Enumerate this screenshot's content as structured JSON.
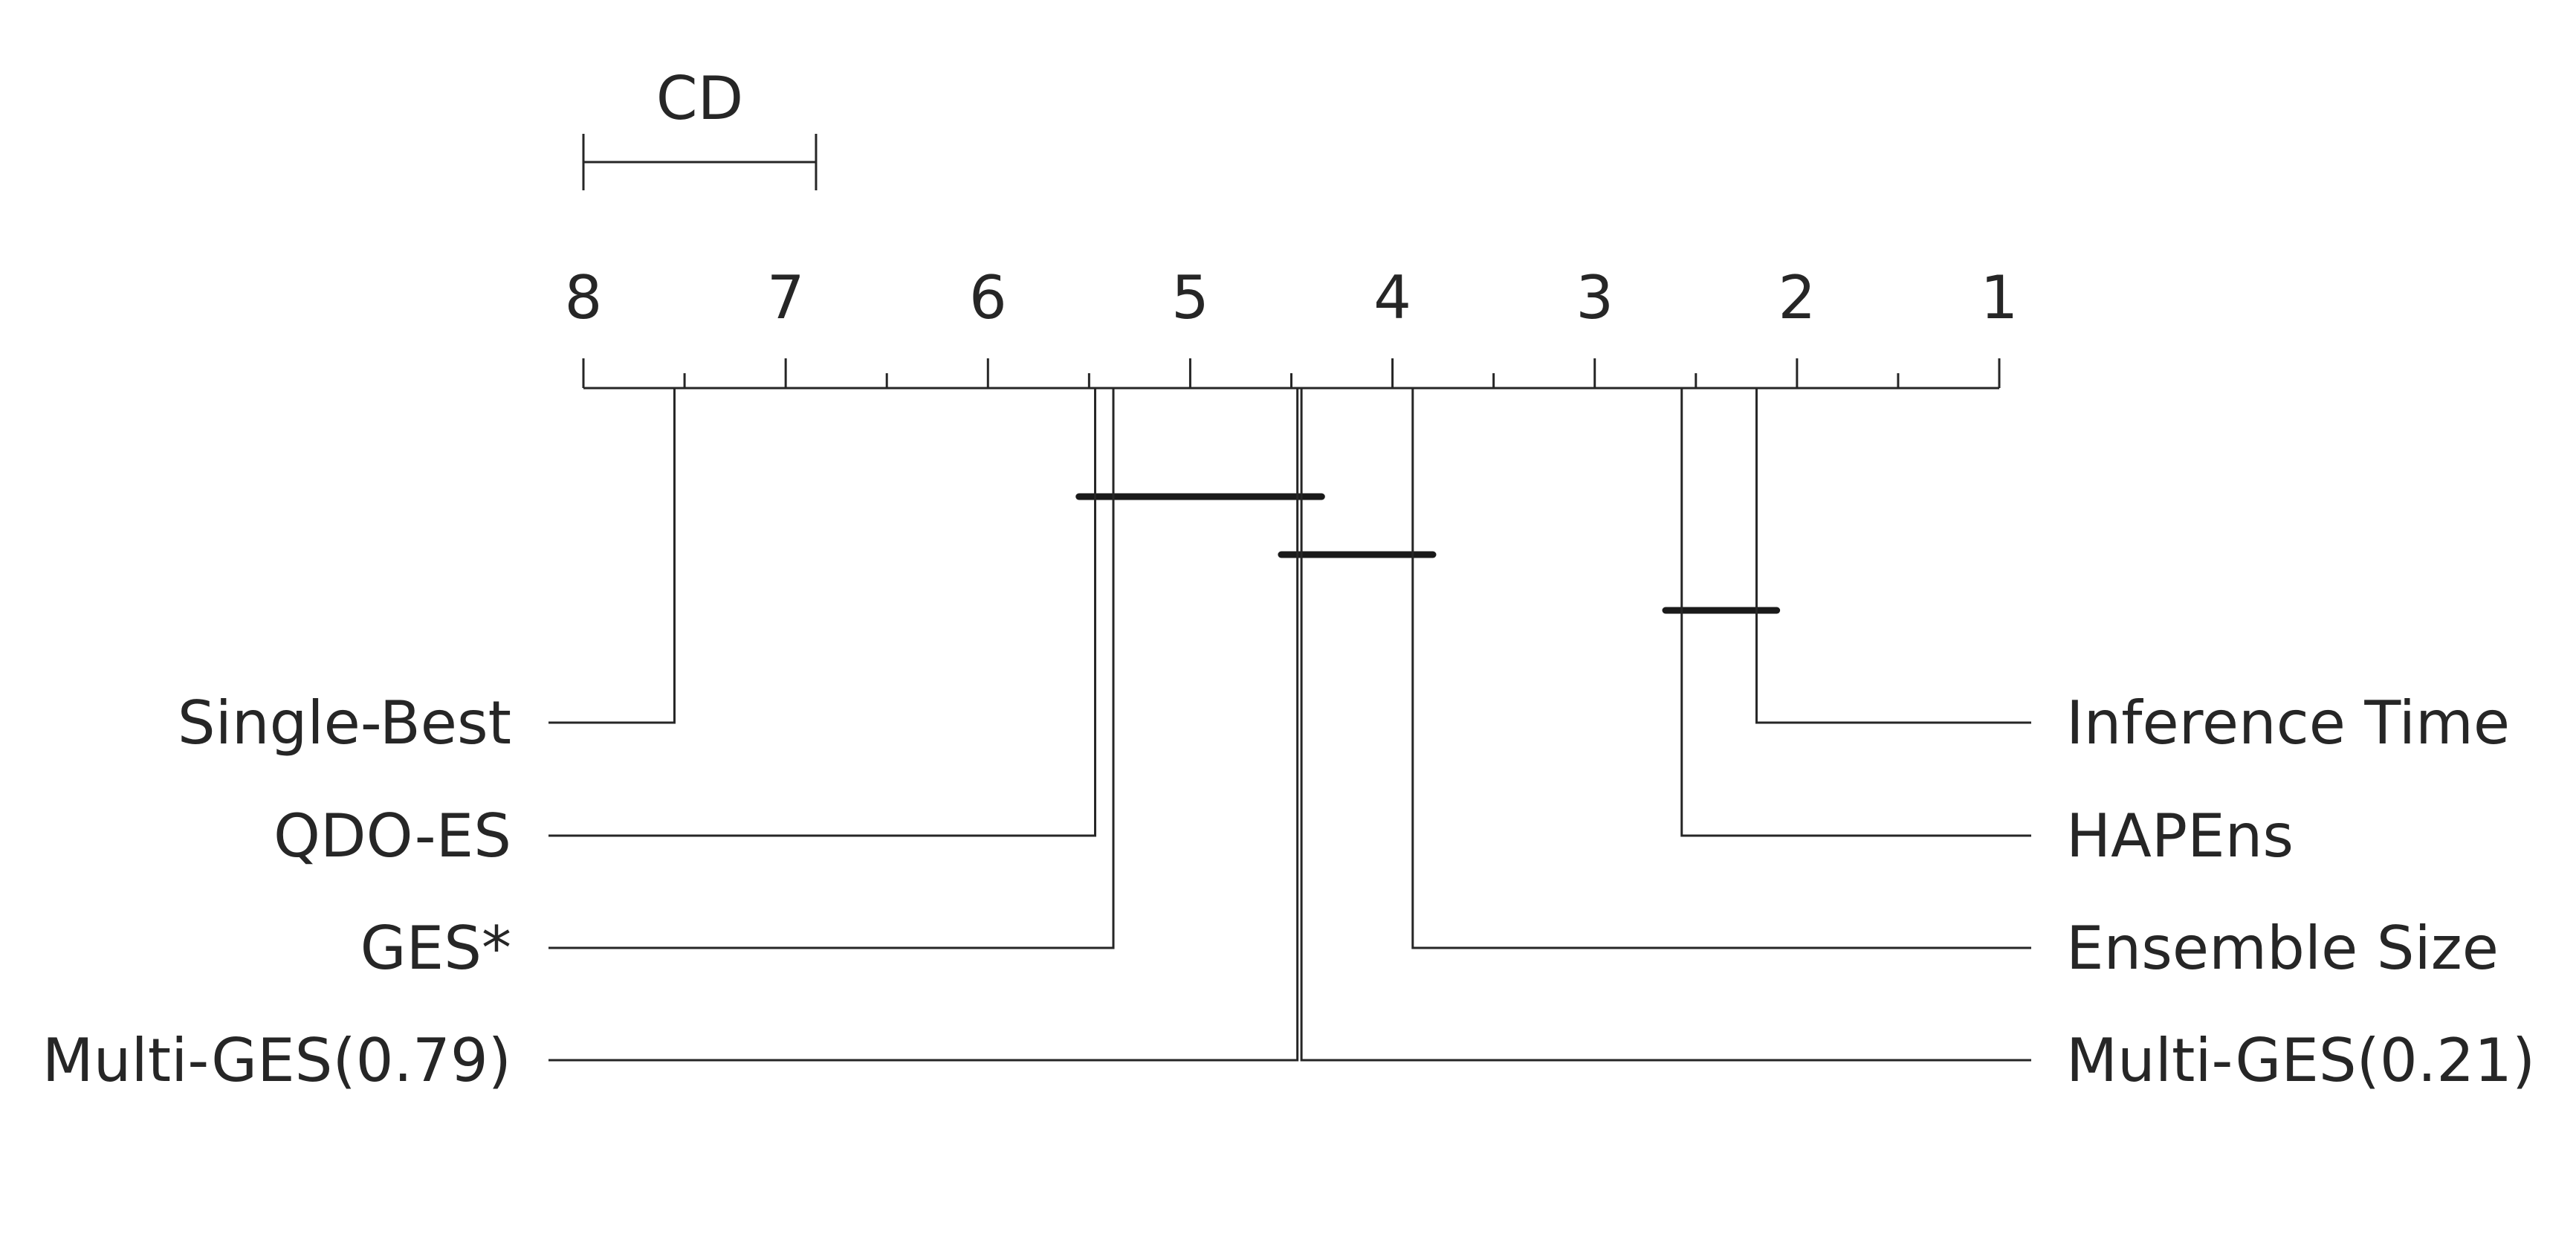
{
  "chart_data": {
    "type": "critical-difference-diagram",
    "cd_label": "CD",
    "critical_difference": 1.15,
    "axis": {
      "min_rank": 1,
      "max_rank": 8,
      "reversed": true,
      "tick_labels": [
        "8",
        "7",
        "6",
        "5",
        "4",
        "3",
        "2",
        "1"
      ]
    },
    "methods": [
      {
        "name": "Single-Best",
        "rank": 7.55,
        "side": "left"
      },
      {
        "name": "QDO-ES",
        "rank": 5.47,
        "side": "left"
      },
      {
        "name": "GES*",
        "rank": 5.38,
        "side": "left"
      },
      {
        "name": "Multi-GES(0.79)",
        "rank": 4.47,
        "side": "left"
      },
      {
        "name": "Multi-GES(0.21)",
        "rank": 4.45,
        "side": "right"
      },
      {
        "name": "Ensemble Size",
        "rank": 3.9,
        "side": "right"
      },
      {
        "name": "HAPEns",
        "rank": 2.57,
        "side": "right"
      },
      {
        "name": "Inference Time",
        "rank": 2.2,
        "side": "right"
      }
    ],
    "cliques": [
      {
        "from_rank": 5.55,
        "to_rank": 4.35
      },
      {
        "from_rank": 4.55,
        "to_rank": 3.8
      },
      {
        "from_rank": 2.65,
        "to_rank": 2.1
      }
    ]
  }
}
